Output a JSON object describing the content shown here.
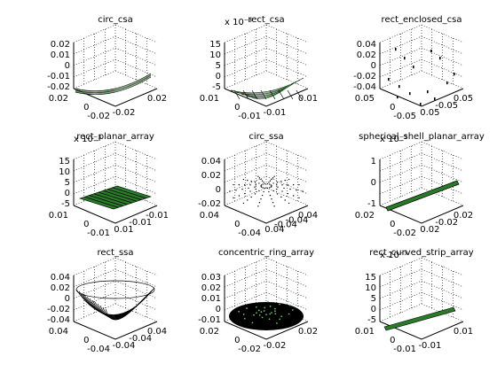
{
  "figure": {
    "background": "#ffffff",
    "line_color": "#000000",
    "accent_green": "#4a9a4a"
  },
  "chart_data": [
    {
      "type": "scatter",
      "title": "circ_csa",
      "exponent": "",
      "xticks": [
        "-0.02",
        "0.02"
      ],
      "yticks": [
        "0.02",
        "0",
        "-0.02"
      ],
      "zticks": [
        "0.02",
        "0.01",
        "0",
        "-0.01",
        "-0.02"
      ],
      "xlim": [
        -0.02,
        0.02
      ],
      "ylim": [
        -0.02,
        0.02
      ],
      "zlim": [
        -0.02,
        0.02
      ],
      "surface": "bowl-thin",
      "style": "dark-green"
    },
    {
      "type": "scatter",
      "title": "rect_csa",
      "exponent": "x 10⁻³",
      "xticks": [
        "-0.01",
        "0.01"
      ],
      "yticks": [
        "0.01",
        "0",
        "-0.01"
      ],
      "zticks": [
        "15",
        "10",
        "5",
        "0",
        "-5"
      ],
      "xlim": [
        -0.01,
        0.01
      ],
      "ylim": [
        -0.01,
        0.01
      ],
      "zlim": [
        -5,
        15
      ],
      "surface": "curved-sheet",
      "style": "dark-green"
    },
    {
      "type": "scatter",
      "title": "rect_enclosed_csa",
      "exponent": "",
      "xticks": [
        "0.05",
        "-0.05",
        "0.05"
      ],
      "yticks": [
        "0.05",
        "0",
        "-0.05"
      ],
      "zticks": [
        "0.04",
        "0.02",
        "0",
        "-0.02",
        "-0.04"
      ],
      "xlim": [
        -0.05,
        0.05
      ],
      "ylim": [
        -0.05,
        0.05
      ],
      "zlim": [
        -0.04,
        0.04
      ],
      "surface": "sparse-points",
      "style": "dark"
    },
    {
      "type": "scatter",
      "title": "rect_planar_array",
      "exponent": "x 10⁻³",
      "xticks": [
        "0.01",
        "-0.01",
        "-0.01"
      ],
      "yticks": [
        "0.01",
        "0",
        "-0.01"
      ],
      "zticks": [
        "15",
        "10",
        "5",
        "0",
        "-5"
      ],
      "xlim": [
        -0.01,
        0.01
      ],
      "ylim": [
        -0.01,
        0.01
      ],
      "zlim": [
        -5,
        15
      ],
      "surface": "flat-sheet",
      "style": "dark-green"
    },
    {
      "type": "scatter",
      "title": "circ_ssa",
      "exponent": "",
      "xticks": [
        "0.04",
        "-0.04",
        "-0.04",
        "0.04"
      ],
      "yticks": [
        "0.04",
        "0",
        "-0.04"
      ],
      "zticks": [
        "0.04",
        "0.02",
        "0",
        "-0.02"
      ],
      "xlim": [
        -0.04,
        0.04
      ],
      "ylim": [
        -0.04,
        0.04
      ],
      "zlim": [
        -0.02,
        0.04
      ],
      "surface": "dotted-bowl",
      "style": "dark"
    },
    {
      "type": "scatter",
      "title": "spherical_shell_planar_array",
      "exponent": "x 10⁻³",
      "xticks": [
        "0.02",
        "-0.02",
        "0.02"
      ],
      "yticks": [
        "0.02",
        "0",
        "-0.02"
      ],
      "zticks": [
        "1",
        "0",
        "-1"
      ],
      "xlim": [
        -0.02,
        0.02
      ],
      "ylim": [
        -0.02,
        0.02
      ],
      "zlim": [
        -1,
        1
      ],
      "surface": "strip",
      "style": "dark-green"
    },
    {
      "type": "scatter",
      "title": "rect_ssa",
      "exponent": "",
      "xticks": [
        "-0.04",
        "-0.04",
        "0.04"
      ],
      "yticks": [
        "0.04",
        "0",
        "-0.04"
      ],
      "zticks": [
        "0.04",
        "0.02",
        "0",
        "-0.02",
        "-0.04"
      ],
      "xlim": [
        -0.04,
        0.04
      ],
      "ylim": [
        -0.04,
        0.04
      ],
      "zlim": [
        -0.04,
        0.04
      ],
      "surface": "bowl-wire",
      "style": "dark"
    },
    {
      "type": "scatter",
      "title": "concentric_ring_array",
      "exponent": "",
      "xticks": [
        "-0.02",
        "0.02"
      ],
      "yticks": [
        "0.02",
        "0",
        "-0.02"
      ],
      "zticks": [
        "0.03",
        "0.02",
        "0.01",
        "0",
        "-0.01"
      ],
      "xlim": [
        -0.02,
        0.02
      ],
      "ylim": [
        -0.02,
        0.02
      ],
      "zlim": [
        -0.01,
        0.03
      ],
      "surface": "filled-disk",
      "style": "dark-green"
    },
    {
      "type": "scatter",
      "title": "rect_curved_strip_array",
      "exponent": "x 10⁻³",
      "xticks": [
        "-0.01",
        "0.01"
      ],
      "yticks": [
        "0.01",
        "0",
        "-0.01"
      ],
      "zticks": [
        "15",
        "10",
        "5",
        "0",
        "-5"
      ],
      "xlim": [
        -0.01,
        0.01
      ],
      "ylim": [
        -0.01,
        0.01
      ],
      "zlim": [
        -5,
        15
      ],
      "surface": "thin-strip",
      "style": "dark-green"
    }
  ]
}
